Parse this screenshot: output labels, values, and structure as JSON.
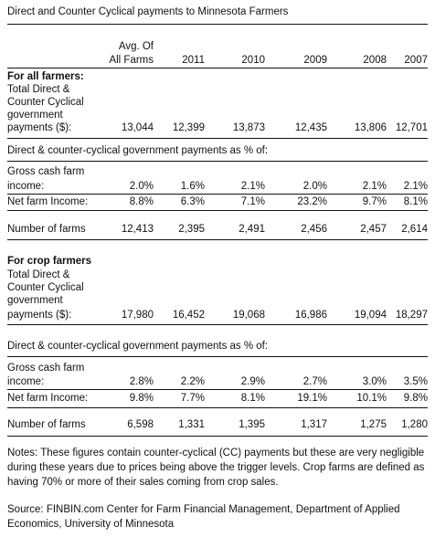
{
  "title": "Direct and Counter Cyclical payments to Minnesota Farmers",
  "columns": {
    "avg_line1": "Avg. Of",
    "avg_line2": "All Farms",
    "years": [
      "2011",
      "2010",
      "2009",
      "2008",
      "2007"
    ]
  },
  "all": {
    "heading": "For all farmers:",
    "pay_label": [
      "Total Direct &",
      "Counter Cyclical",
      "government",
      "payments ($):"
    ],
    "pay": [
      "13,044",
      "12,399",
      "13,873",
      "12,435",
      "13,806",
      "12,701"
    ],
    "pct_heading": "Direct & counter-cyclical government payments as % of:",
    "gross_label": [
      "Gross cash farm",
      "income:"
    ],
    "gross": [
      "2.0%",
      "1.6%",
      "2.1%",
      "2.0%",
      "2.1%",
      "2.1%"
    ],
    "net_label": "Net farm Income:",
    "net": [
      "8.8%",
      "6.3%",
      "7.1%",
      "23.2%",
      "9.7%",
      "8.1%"
    ],
    "farms_label": "Number of farms",
    "farms": [
      "12,413",
      "2,395",
      "2,491",
      "2,456",
      "2,457",
      "2,614"
    ]
  },
  "crop": {
    "heading": "For crop farmers",
    "pay_label": [
      "Total Direct &",
      "Counter Cyclical",
      "government",
      "payments ($):"
    ],
    "pay": [
      "17,980",
      "16,452",
      "19,068",
      "16,986",
      "19,094",
      "18,297"
    ],
    "pct_heading": "Direct & counter-cyclical government payments as % of:",
    "gross_label": [
      "Gross cash farm",
      "income:"
    ],
    "gross": [
      "2.8%",
      "2.2%",
      "2.9%",
      "2.7%",
      "3.0%",
      "3.5%"
    ],
    "net_label": "Net farm Income:",
    "net": [
      "9.8%",
      "7.7%",
      "8.1%",
      "19.1%",
      "10.1%",
      "9.8%"
    ],
    "farms_label": "Number of farms",
    "farms": [
      "6,598",
      "1,331",
      "1,395",
      "1,317",
      "1,275",
      "1,280"
    ]
  },
  "notes": "Notes: These figures contain counter-cyclical (CC) payments but these are very negligible during these years due to prices being above the trigger levels. Crop farms are defined as having 70% or more of their sales coming from crop sales.",
  "source": "Source: FINBIN.com Center for Farm Financial Management, Department of Applied Economics, University of Minnesota"
}
